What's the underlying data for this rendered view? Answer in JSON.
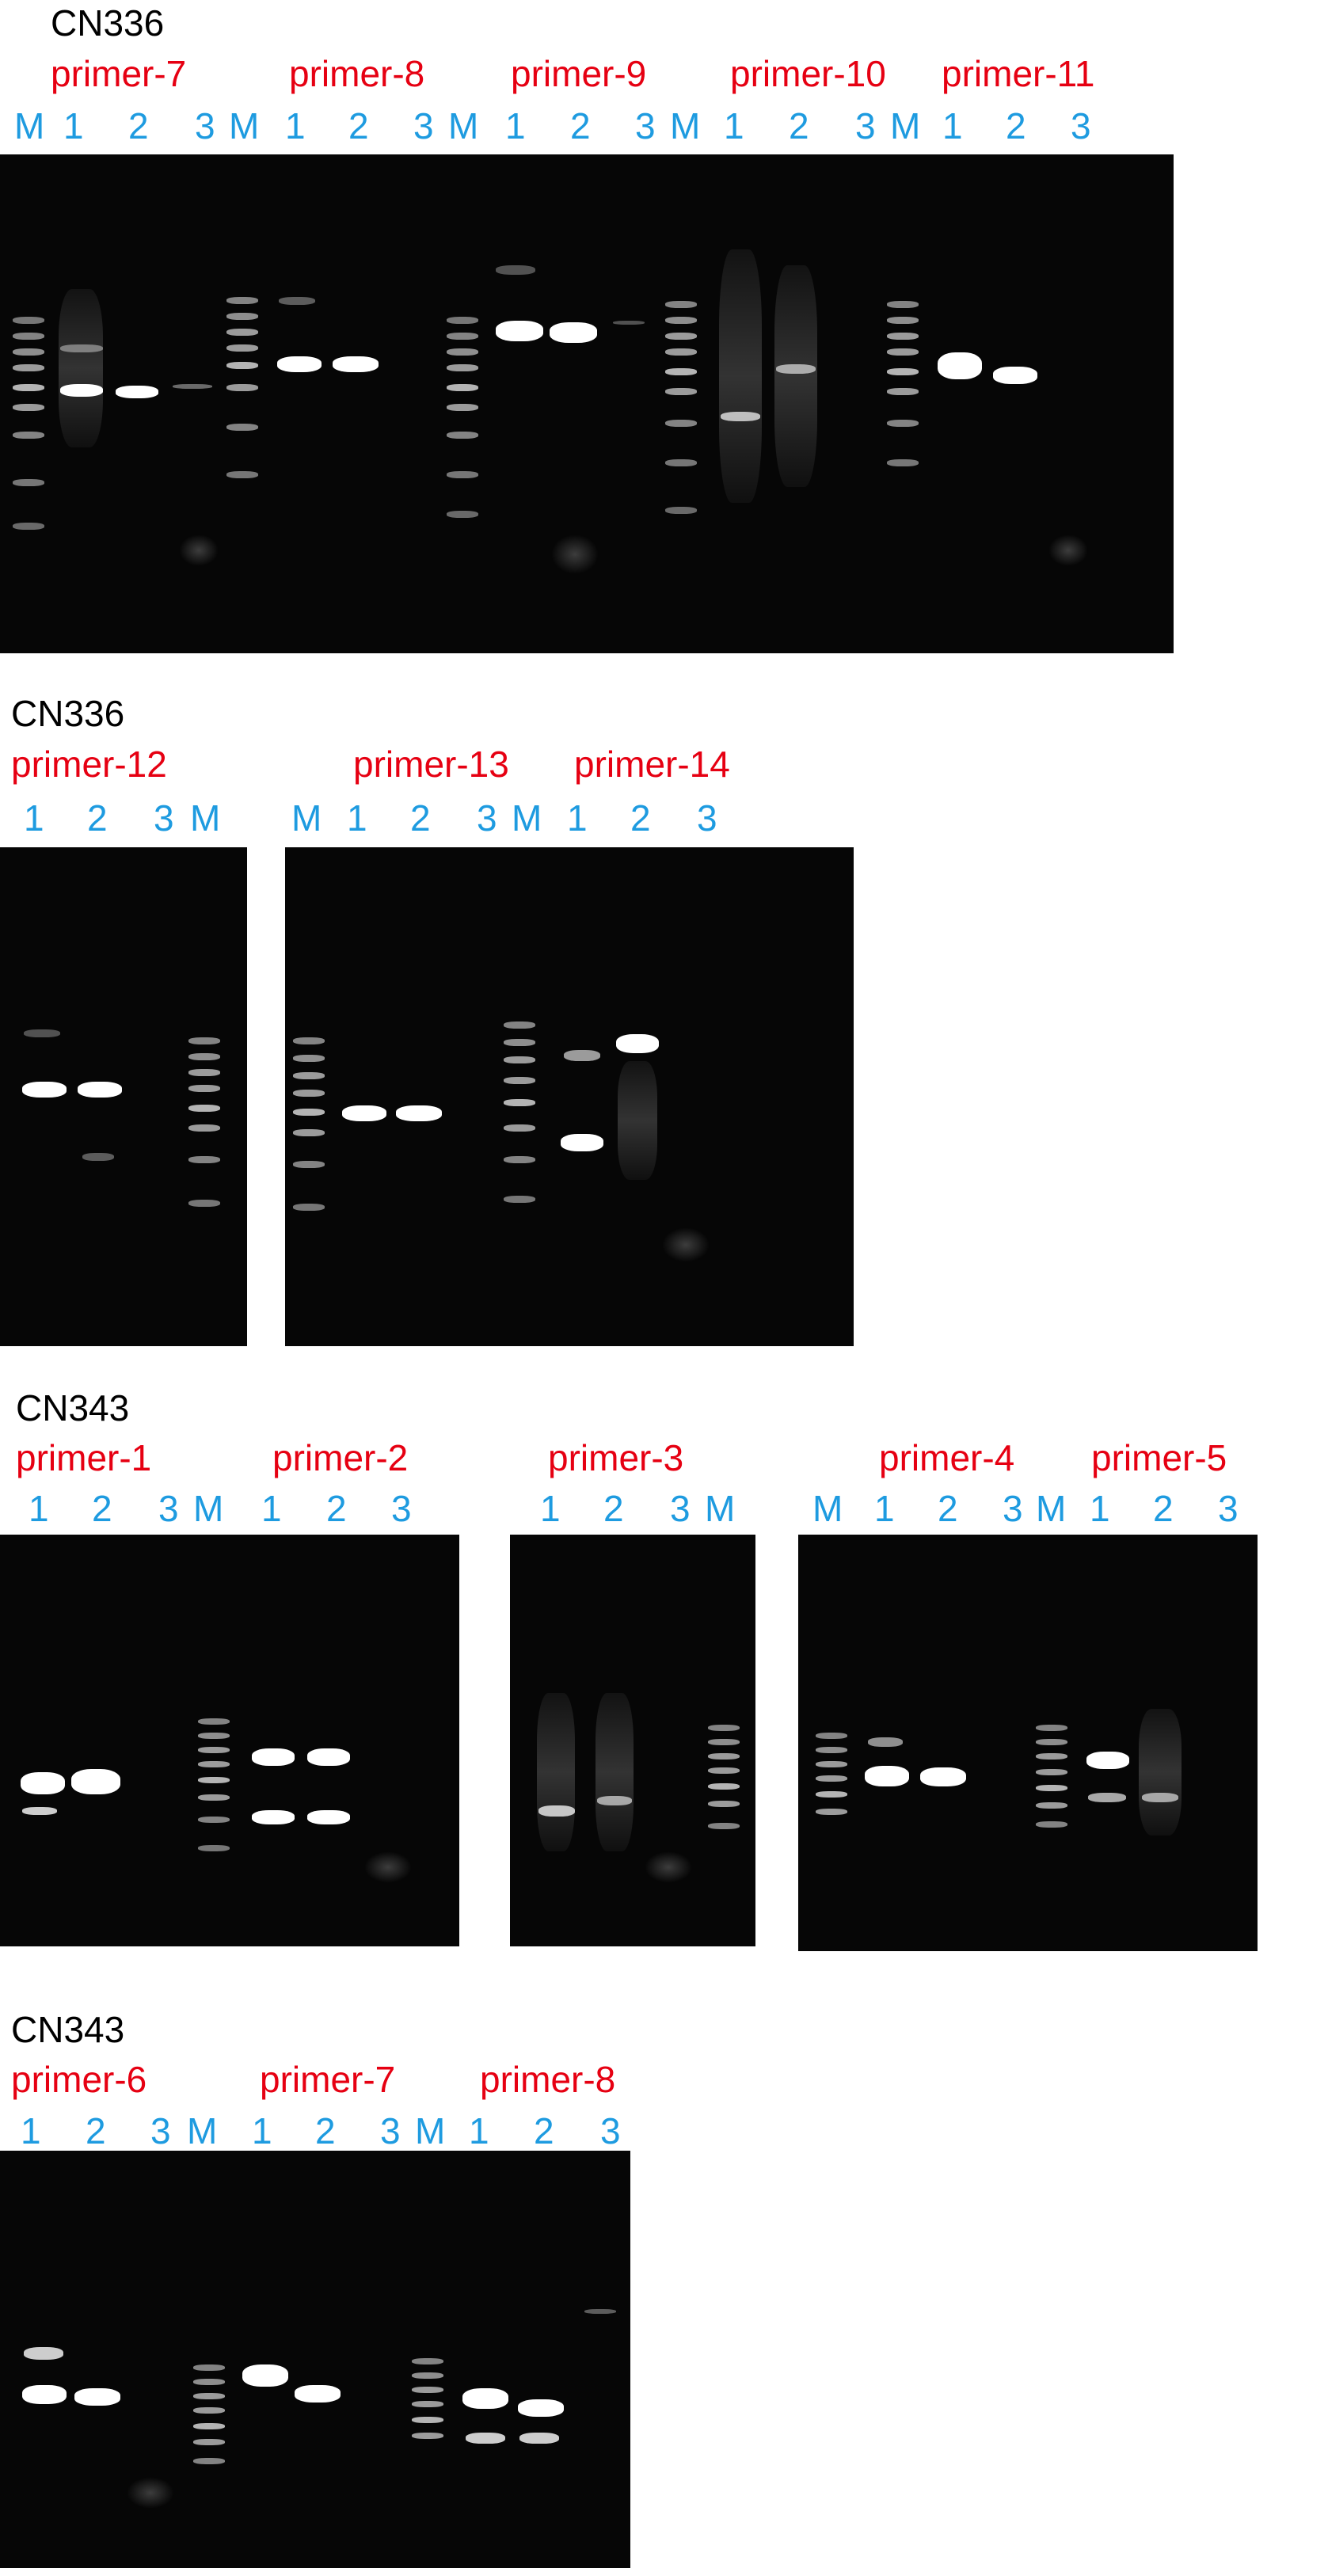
{
  "panels": [
    {
      "sample": "CN336",
      "primers": [
        "primer-7",
        "primer-8",
        "primer-9",
        "primer-10",
        "primer-11"
      ],
      "lanes": [
        "M",
        "1",
        "2",
        "3",
        "M",
        "1",
        "2",
        "3",
        "M",
        "1",
        "2",
        "3",
        "M",
        "1",
        "2",
        "3",
        "M",
        "1",
        "2",
        "3"
      ]
    },
    {
      "sample": "CN336",
      "primers": [
        "primer-12",
        "primer-13",
        "primer-14"
      ],
      "lanes": [
        "1",
        "2",
        "3",
        "M",
        "M",
        "1",
        "2",
        "3",
        "M",
        "1",
        "2",
        "3"
      ]
    },
    {
      "sample": "CN343",
      "primers": [
        "primer-1",
        "primer-2",
        "primer-3",
        "primer-4",
        "primer-5"
      ],
      "lanes": [
        "1",
        "2",
        "3",
        "M",
        "1",
        "2",
        "3",
        "1",
        "2",
        "3",
        "M",
        "M",
        "1",
        "2",
        "3",
        "M",
        "1",
        "2",
        "3"
      ]
    },
    {
      "sample": "CN343",
      "primers": [
        "primer-6",
        "primer-7",
        "primer-8"
      ],
      "lanes": [
        "1",
        "2",
        "3",
        "M",
        "1",
        "2",
        "3",
        "M",
        "1",
        "2",
        "3"
      ]
    }
  ]
}
